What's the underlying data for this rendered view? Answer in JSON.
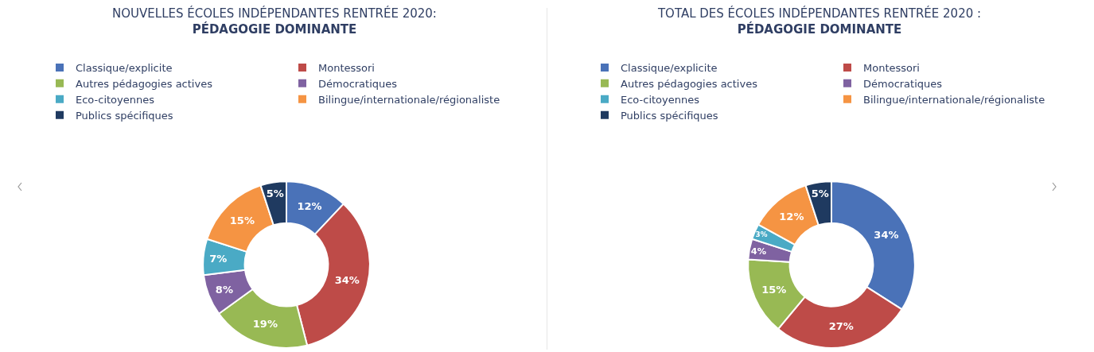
{
  "chart_data": [
    {
      "type": "donut",
      "title": "NOUVELLES ÉCOLES INDÉPENDANTES RENTRÉE 2020:",
      "subtitle": "PÉDAGOGIE DOMINANTE",
      "categories": [
        "Classique/explicite",
        "Montessori",
        "Autres pédagogies actives",
        "Démocratiques",
        "Eco-citoyennes",
        "Bilingue/internationale/régionaliste",
        "Publics spécifiques"
      ],
      "values": [
        12,
        34,
        19,
        8,
        7,
        15,
        5
      ],
      "value_labels": [
        "12%",
        "34%",
        "19%",
        "8%",
        "7%",
        "15%",
        "5%"
      ],
      "colors": [
        "#4a72b8",
        "#be4b48",
        "#98b954",
        "#7f62a1",
        "#4aaac5",
        "#f59443",
        "#1f3a60"
      ],
      "legend": "top left"
    },
    {
      "type": "donut",
      "title": "TOTAL DES ÉCOLES INDÉPENDANTES RENTRÉE 2020 :",
      "subtitle": "PÉDAGOGIE DOMINANTE",
      "categories": [
        "Classique/explicite",
        "Montessori",
        "Autres pédagogies actives",
        "Démocratiques",
        "Eco-citoyennes",
        "Bilingue/internationale/régionaliste",
        "Publics spécifiques"
      ],
      "values": [
        34,
        27,
        15,
        4,
        3,
        12,
        5
      ],
      "value_labels": [
        "34%",
        "27%",
        "15%",
        "4%",
        "3%",
        "12%",
        "5%"
      ],
      "colors": [
        "#4a72b8",
        "#be4b48",
        "#98b954",
        "#7f62a1",
        "#4aaac5",
        "#f59443",
        "#1f3a60"
      ],
      "legend": "top left"
    }
  ]
}
